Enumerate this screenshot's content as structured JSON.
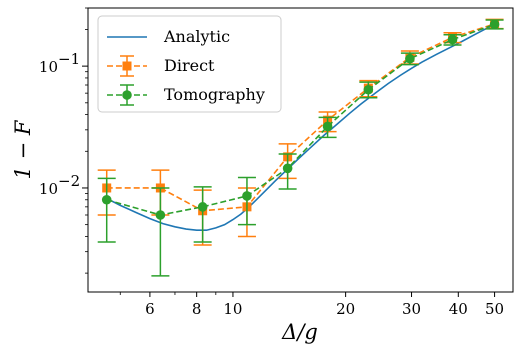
{
  "chart_data": {
    "type": "line",
    "xlabel": "Δ/g",
    "ylabel": "1 − F",
    "xscale": "log",
    "yscale": "log",
    "xlim": [
      4.1,
      56
    ],
    "ylim": [
      0.0014,
      0.3
    ],
    "xticks": [
      {
        "value": 6,
        "label": "6"
      },
      {
        "value": 8,
        "label": "8"
      },
      {
        "value": 10,
        "label": "10"
      },
      {
        "value": 20,
        "label": "20"
      },
      {
        "value": 30,
        "label": "30"
      },
      {
        "value": 40,
        "label": "40"
      },
      {
        "value": 50,
        "label": "50"
      }
    ],
    "yticks": [
      {
        "value": 0.01,
        "label": "10",
        "exp": "−2"
      },
      {
        "value": 0.1,
        "label": "10",
        "exp": "−1"
      }
    ],
    "legend": {
      "position": "upper-left"
    },
    "series": [
      {
        "name": "Analytic",
        "style": "solid",
        "color": "#1f77b4",
        "x": [
          4.6,
          5.0,
          5.5,
          6.0,
          6.5,
          7.0,
          7.5,
          8.0,
          8.5,
          9.0,
          9.5,
          10.0,
          10.5,
          11.0,
          12.0,
          13.0,
          14.0,
          15.0,
          16.0,
          17.5,
          19.0,
          20.5,
          22.0,
          24.0,
          26.0,
          28.0,
          30.0,
          32.0,
          35.0,
          38.0,
          41.0,
          44.0,
          47.0,
          50.0
        ],
        "y": [
          0.0082,
          0.0072,
          0.0063,
          0.0056,
          0.0051,
          0.0048,
          0.0046,
          0.0045,
          0.0045,
          0.0047,
          0.005,
          0.0055,
          0.0061,
          0.0069,
          0.009,
          0.0115,
          0.0143,
          0.0175,
          0.021,
          0.027,
          0.0335,
          0.041,
          0.049,
          0.06,
          0.072,
          0.084,
          0.096,
          0.108,
          0.125,
          0.142,
          0.16,
          0.18,
          0.2,
          0.218
        ]
      },
      {
        "name": "Direct",
        "style": "dashed",
        "color": "#ff7f0e",
        "marker": "square",
        "x": [
          4.6,
          6.4,
          8.3,
          10.9,
          14.0,
          17.9,
          23.0,
          29.7,
          38.6,
          50.0
        ],
        "y": [
          0.01,
          0.01,
          0.0065,
          0.007,
          0.018,
          0.036,
          0.066,
          0.118,
          0.172,
          0.222
        ],
        "err_low": [
          0.006,
          0.006,
          0.0034,
          0.004,
          0.012,
          0.029,
          0.056,
          0.104,
          0.156,
          0.203
        ],
        "err_high": [
          0.014,
          0.014,
          0.0096,
          0.01,
          0.023,
          0.042,
          0.076,
          0.133,
          0.188,
          0.242
        ]
      },
      {
        "name": "Tomography",
        "style": "dashed",
        "color": "#2ca02c",
        "marker": "circle",
        "x": [
          4.6,
          6.4,
          8.3,
          10.9,
          14.0,
          17.9,
          23.0,
          29.7,
          38.6,
          50.0
        ],
        "y": [
          0.008,
          0.006,
          0.007,
          0.0086,
          0.0145,
          0.032,
          0.064,
          0.115,
          0.165,
          0.22
        ],
        "err_low": [
          0.0036,
          0.0019,
          0.0036,
          0.005,
          0.0098,
          0.026,
          0.055,
          0.103,
          0.149,
          0.202
        ],
        "err_high": [
          0.012,
          0.01,
          0.0102,
          0.0122,
          0.019,
          0.038,
          0.074,
          0.128,
          0.181,
          0.239
        ]
      }
    ]
  }
}
